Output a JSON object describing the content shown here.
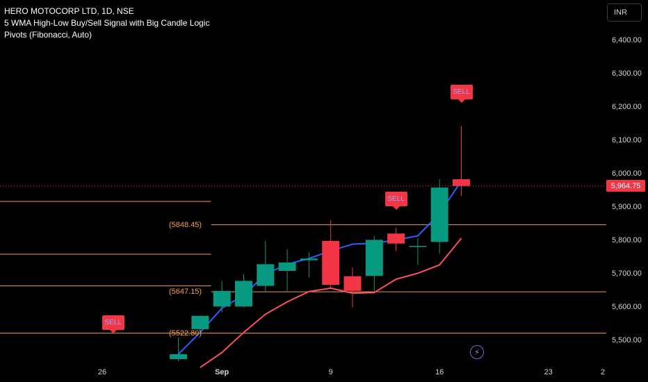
{
  "legend": {
    "symbol": "HERO MOTOCORP LTD, 1D, NSE",
    "indicator1": "5 WMA High-Low Buy/Sell Signal with Big Candle Logic",
    "indicator2": "Pivots (Fibonacci, Auto)"
  },
  "currency": "INR",
  "bolt_icon": "lightning-bolt-icon",
  "colors": {
    "up": "#089981",
    "down": "#f23645",
    "wma_high": "#2962ff",
    "wma_low": "#f7525f",
    "pivot": "#f7a042"
  },
  "chart_data": {
    "type": "candlestick",
    "ylim": [
      5438,
      6480
    ],
    "y_ticks": [
      5500,
      5600,
      5700,
      5800,
      5900,
      6000,
      6100,
      6200,
      6300,
      6400
    ],
    "y_tick_labels": [
      "5,500.00",
      "5,600.00",
      "5,700.00",
      "5,800.00",
      "5,900.00",
      "6,000.00",
      "6,100.00",
      "6,200.00",
      "6,300.00",
      "6,400.00"
    ],
    "x_ticks": [
      {
        "label": "26",
        "x": 3.5,
        "bold": false
      },
      {
        "label": "Sep",
        "x": 9,
        "bold": true
      },
      {
        "label": "9",
        "x": 14,
        "bold": false
      },
      {
        "label": "16",
        "x": 19,
        "bold": false
      },
      {
        "label": "23",
        "x": 24,
        "bold": false
      },
      {
        "label": "2",
        "x": 26.5,
        "bold": false
      }
    ],
    "candles": [
      {
        "x": 7,
        "o": 5445,
        "h": 5510,
        "l": 5425,
        "c": 5460
      },
      {
        "x": 8,
        "o": 5535,
        "h": 5575,
        "l": 5520,
        "c": 5575
      },
      {
        "x": 9,
        "o": 5603,
        "h": 5680,
        "l": 5585,
        "c": 5650
      },
      {
        "x": 10,
        "o": 5603,
        "h": 5700,
        "l": 5600,
        "c": 5680
      },
      {
        "x": 11,
        "o": 5665,
        "h": 5800,
        "l": 5650,
        "c": 5730
      },
      {
        "x": 12,
        "o": 5710,
        "h": 5775,
        "l": 5650,
        "c": 5735
      },
      {
        "x": 13,
        "o": 5742,
        "h": 5765,
        "l": 5690,
        "c": 5747
      },
      {
        "x": 14,
        "o": 5800,
        "h": 5862,
        "l": 5660,
        "c": 5668
      },
      {
        "x": 15,
        "o": 5694,
        "h": 5720,
        "l": 5600,
        "c": 5650
      },
      {
        "x": 16,
        "o": 5695,
        "h": 5815,
        "l": 5650,
        "c": 5803
      },
      {
        "x": 17,
        "o": 5822,
        "h": 5840,
        "l": 5770,
        "c": 5792
      },
      {
        "x": 18,
        "o": 5785,
        "h": 5808,
        "l": 5728,
        "c": 5785
      },
      {
        "x": 19,
        "o": 5797,
        "h": 5985,
        "l": 5762,
        "c": 5960
      },
      {
        "x": 20,
        "o": 5985,
        "h": 6145,
        "l": 5935,
        "c": 5964.75
      }
    ],
    "series": [
      {
        "name": "",
        "color": "#2962ff",
        "points": [
          [
            7,
            5460
          ],
          [
            8,
            5525
          ],
          [
            9,
            5598
          ],
          [
            10,
            5637
          ],
          [
            11,
            5700
          ],
          [
            12,
            5730
          ],
          [
            13,
            5747
          ],
          [
            14,
            5770
          ],
          [
            15,
            5790
          ],
          [
            16,
            5793
          ],
          [
            17,
            5803
          ],
          [
            18,
            5815
          ],
          [
            19,
            5882
          ],
          [
            20,
            5980
          ]
        ]
      },
      {
        "name": "",
        "color": "#f7525f",
        "points": [
          [
            8,
            5420
          ],
          [
            9,
            5465
          ],
          [
            10,
            5525
          ],
          [
            11,
            5580
          ],
          [
            12,
            5617
          ],
          [
            13,
            5648
          ],
          [
            14,
            5658
          ],
          [
            15,
            5643
          ],
          [
            16,
            5645
          ],
          [
            17,
            5685
          ],
          [
            18,
            5703
          ],
          [
            19,
            5728
          ],
          [
            20,
            5808
          ]
        ]
      }
    ],
    "pivots": [
      {
        "x_from": -2,
        "x_to": 8.5,
        "y": 5918.5,
        "label": ""
      },
      {
        "x_from": -2,
        "x_to": 8.5,
        "y": 5760,
        "label": ""
      },
      {
        "x_from": -2,
        "x_to": 8.5,
        "y": 5665,
        "label": ""
      },
      {
        "x_from": 8.5,
        "x_to": 26.7,
        "y": 5848.45,
        "label": "(5848.45)"
      },
      {
        "x_from": 8.5,
        "x_to": 26.7,
        "y": 5647.15,
        "label": "(5647.15)"
      },
      {
        "x_from": -2,
        "x_to": 26.7,
        "y": 5522.8,
        "label": "(5522.80)"
      }
    ],
    "last_price": 5964.75,
    "last_price_label": "5,964.75",
    "signals": [
      {
        "x": 4,
        "price": 5522,
        "label": "SELL"
      },
      {
        "x": 17,
        "price": 5893,
        "label": "SELL"
      },
      {
        "x": 20,
        "price": 6215,
        "label": "SELL"
      }
    ]
  }
}
